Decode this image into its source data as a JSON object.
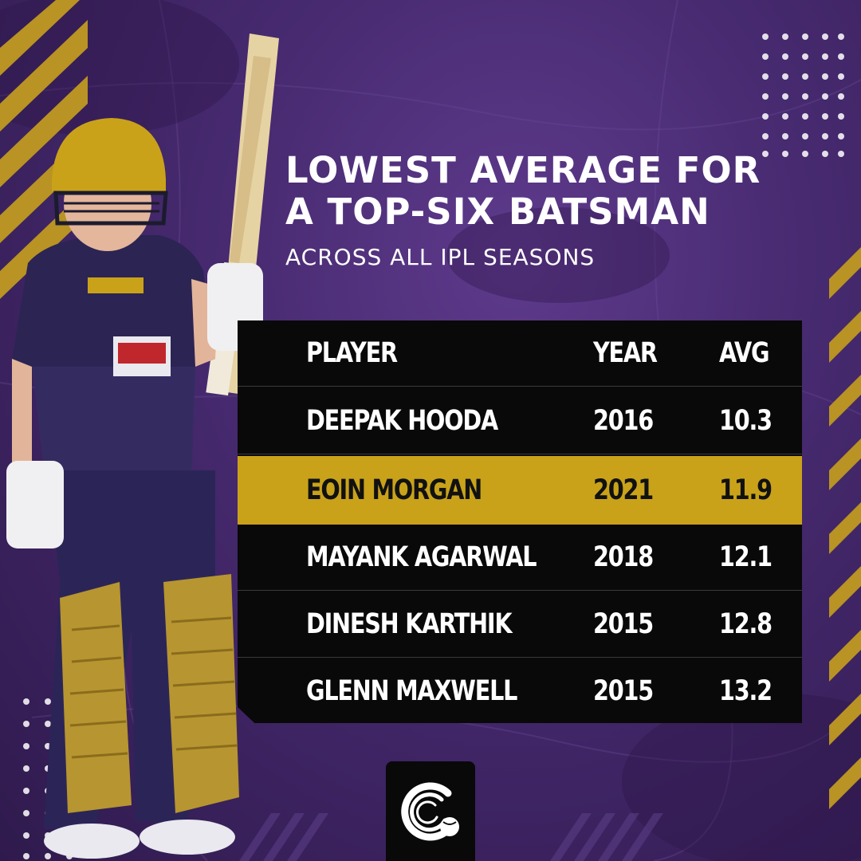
{
  "header": {
    "title_line1": "LOWEST AVERAGE FOR",
    "title_line2": "A TOP-SIX BATSMAN",
    "subtitle": "ACROSS ALL IPL SEASONS"
  },
  "table": {
    "columns": [
      "PLAYER",
      "YEAR",
      "AVG"
    ],
    "rows": [
      {
        "player": "DEEPAK HOODA",
        "year": "2016",
        "avg": "10.3"
      },
      {
        "player": "EOIN MORGAN",
        "year": "2021",
        "avg": "11.9"
      },
      {
        "player": "MAYANK AGARWAL",
        "year": "2018",
        "avg": "12.1"
      },
      {
        "player": "DINESH KARTHIK",
        "year": "2015",
        "avg": "12.8"
      },
      {
        "player": "GLENN MAXWELL",
        "year": "2015",
        "avg": "13.2"
      }
    ],
    "highlight_row": 2
  },
  "colors": {
    "background": "#472a70",
    "accent_gold": "#c9a21a",
    "table_bg": "#090909",
    "text": "#ffffff"
  },
  "icons": {
    "logo": "cricket-ball-logo-icon"
  }
}
